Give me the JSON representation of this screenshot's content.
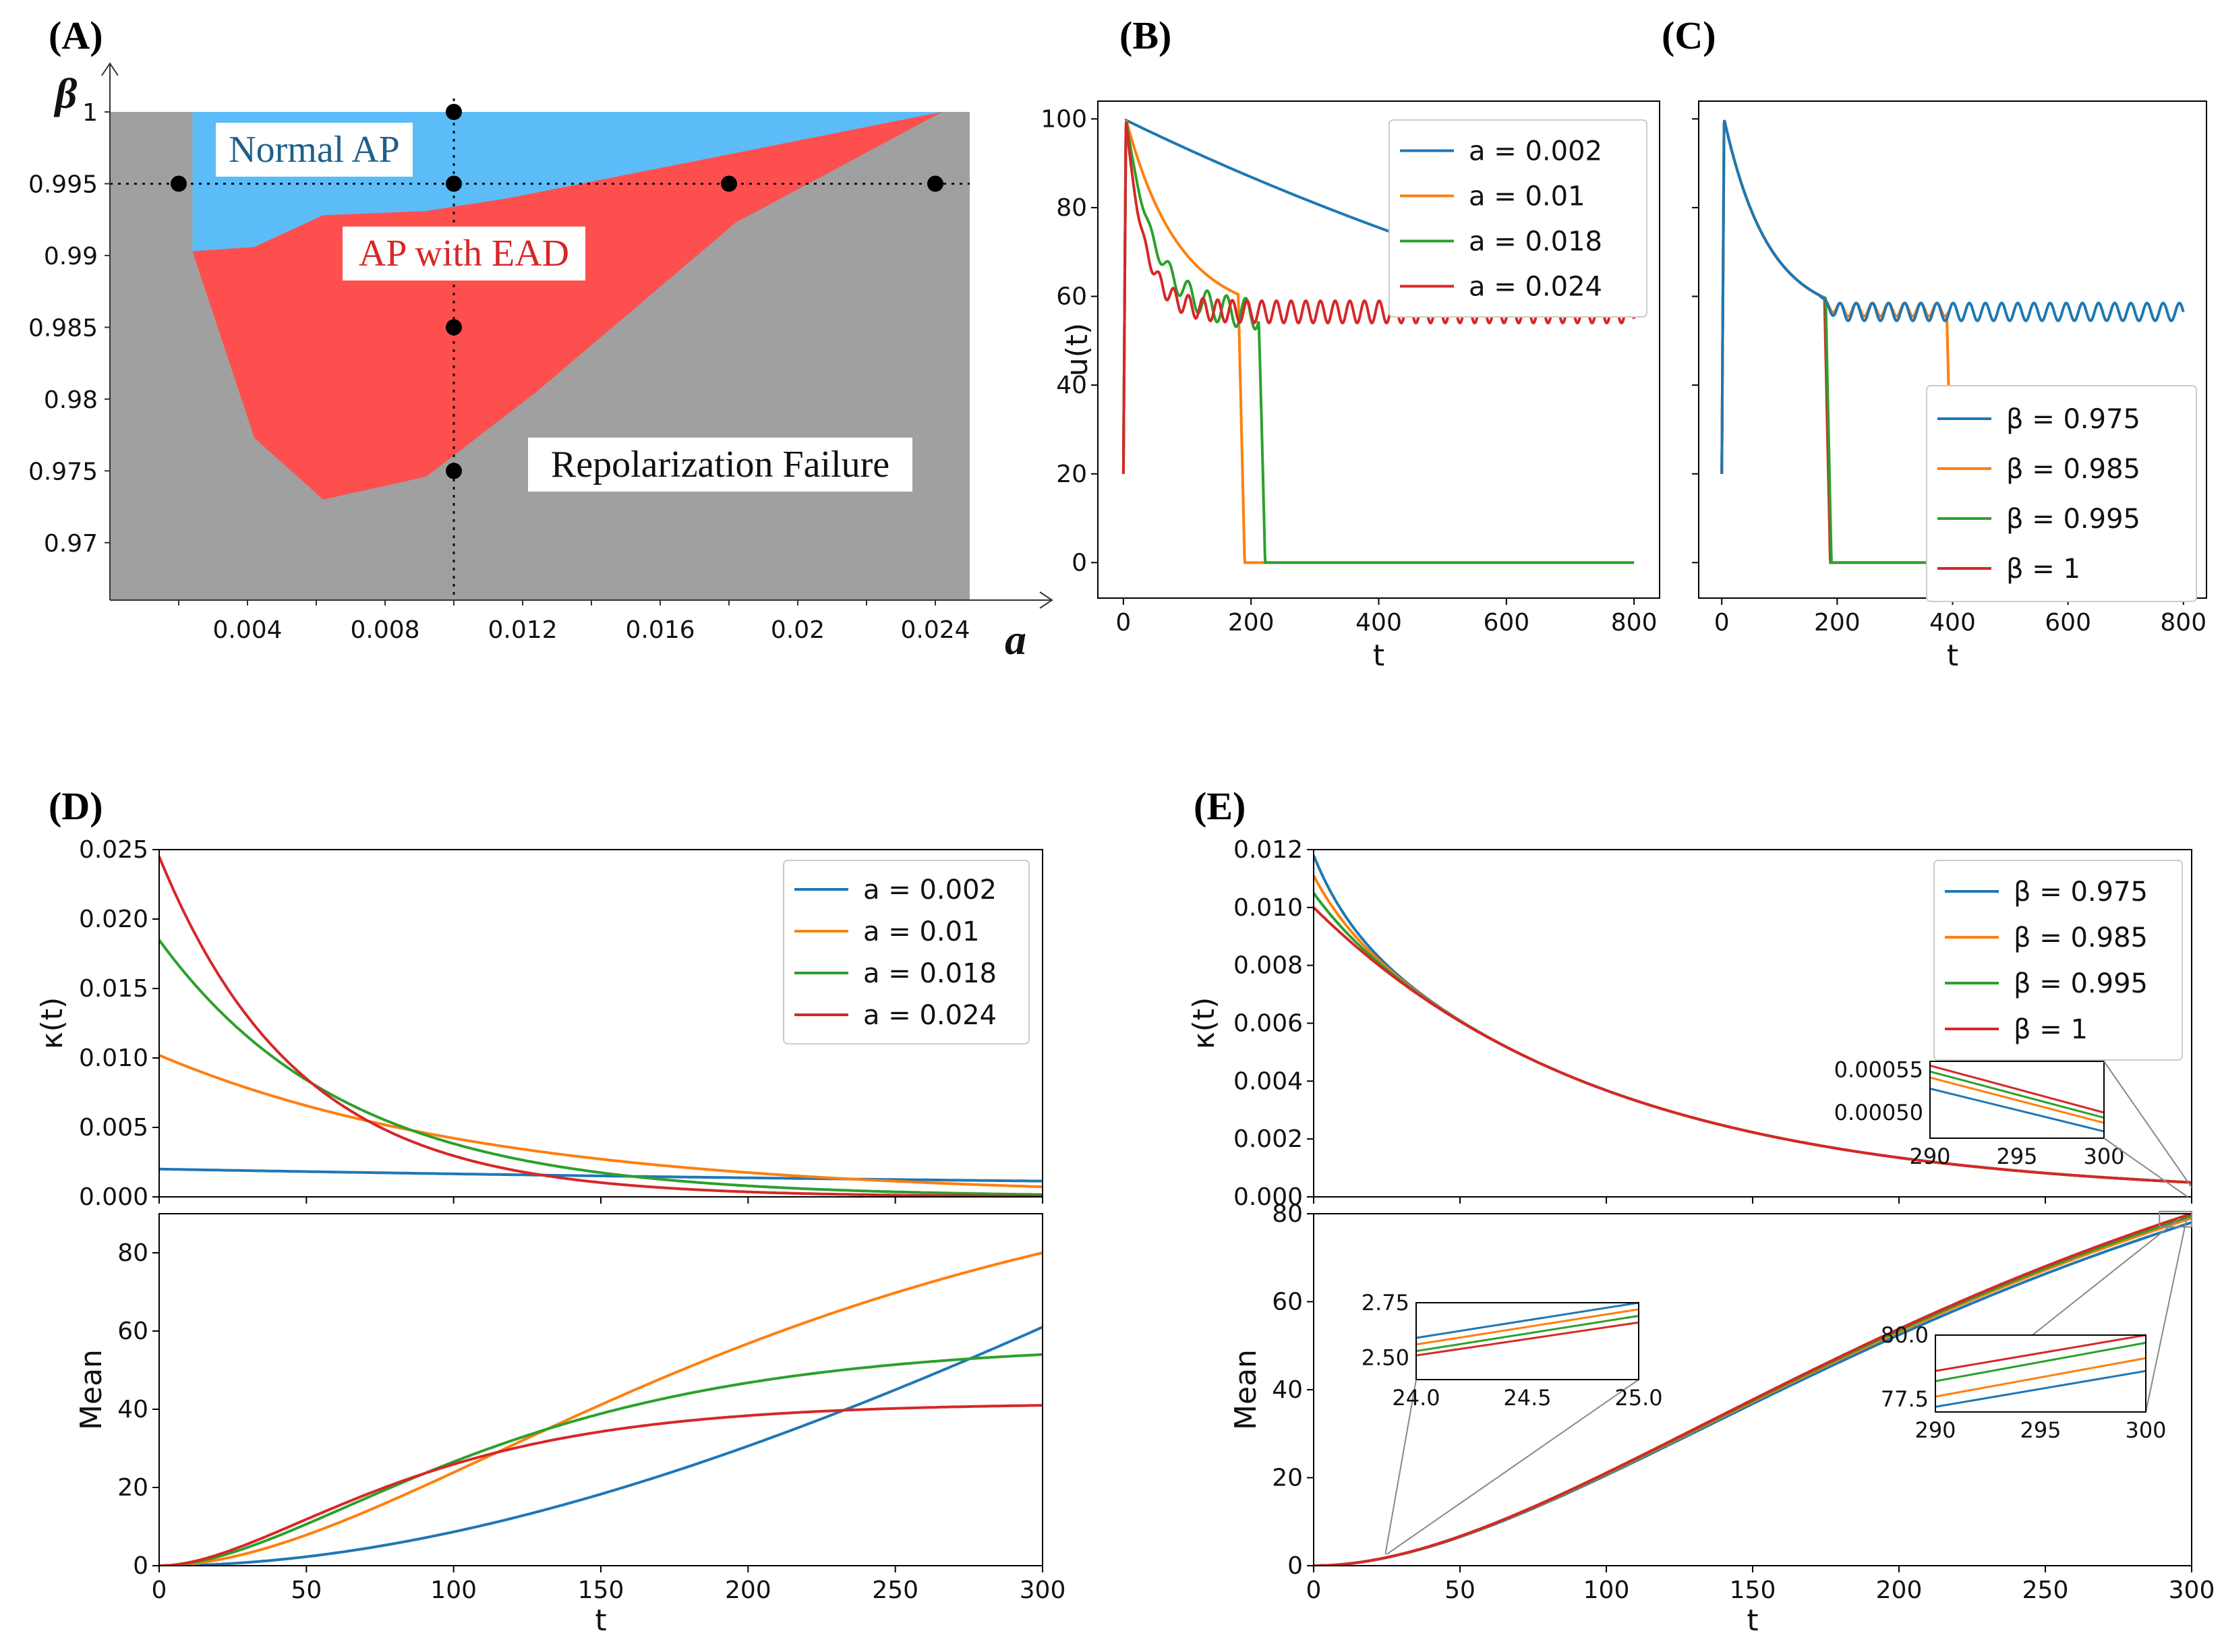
{
  "panel_labels": [
    "(A)",
    "(B)",
    "(C)",
    "(D)",
    "(E)"
  ],
  "colors": {
    "blue": "#1f77b4",
    "orange": "#ff7f0e",
    "green": "#2ca02c",
    "red": "#d62728",
    "normal": "#5bbcf8",
    "ead": "#fe4f4f",
    "fail": "#a0a0a0"
  },
  "chart_data": [
    {
      "panel": "(A)",
      "type": "area",
      "xlabel": "a",
      "ylabel": "β",
      "xlim": [
        0,
        0.025
      ],
      "ylim": [
        0.966,
        1.0
      ],
      "x_ticks": [
        "0.004",
        "0.008",
        "0.012",
        "0.016",
        "0.02",
        "0.024"
      ],
      "x_tick_values": [
        0.004,
        0.008,
        0.012,
        0.016,
        0.02,
        0.024
      ],
      "y_ticks": [
        "0.97",
        "0.975",
        "0.98",
        "0.985",
        "0.99",
        "0.995",
        "1"
      ],
      "y_tick_values": [
        0.97,
        0.975,
        0.98,
        0.985,
        0.99,
        0.995,
        1.0
      ],
      "regions": [
        {
          "label": "Normal AP",
          "upper": [
            [
              0.0024,
              1.0
            ],
            [
              0.0242,
              1.0
            ]
          ],
          "lower": [
            [
              0.0024,
              0.9903
            ],
            [
              0.0042,
              0.9906
            ],
            [
              0.0062,
              0.9928
            ],
            [
              0.0092,
              0.9931
            ],
            [
              0.0116,
              0.994
            ],
            [
              0.0242,
              1.0
            ]
          ]
        },
        {
          "label": "AP with EAD",
          "upper": [
            [
              0.0024,
              0.9903
            ],
            [
              0.0042,
              0.9906
            ],
            [
              0.0062,
              0.9928
            ],
            [
              0.0092,
              0.9931
            ],
            [
              0.0116,
              0.994
            ],
            [
              0.0242,
              1.0
            ]
          ],
          "lower": [
            [
              0.0024,
              0.9903
            ],
            [
              0.0042,
              0.9773
            ],
            [
              0.0062,
              0.973
            ],
            [
              0.0092,
              0.9746
            ],
            [
              0.0124,
              0.9805
            ],
            [
              0.0182,
              0.9923
            ],
            [
              0.0242,
              1.0
            ]
          ]
        }
      ],
      "background_label": "Repolarization Failure",
      "points": [
        [
          0.002,
          0.995
        ],
        [
          0.01,
          1.0
        ],
        [
          0.01,
          0.995
        ],
        [
          0.01,
          0.985
        ],
        [
          0.01,
          0.975
        ],
        [
          0.018,
          0.995
        ],
        [
          0.024,
          0.995
        ]
      ],
      "reference_lines": {
        "a": 0.01,
        "beta": 0.995
      }
    },
    {
      "panel": "(B)",
      "type": "line",
      "xlabel": "t",
      "ylabel": "u(t)",
      "xlim": [
        -40,
        840
      ],
      "ylim": [
        -8,
        104
      ],
      "x_ticks": [
        "0",
        "200",
        "400",
        "600",
        "800"
      ],
      "x_tick_values": [
        0,
        200,
        400,
        600,
        800
      ],
      "y_ticks": [
        "0",
        "20",
        "40",
        "60",
        "80",
        "100"
      ],
      "y_tick_values": [
        0,
        20,
        40,
        60,
        80,
        100
      ],
      "legend_loc": "top-right",
      "series": [
        {
          "name": "a = 0.002",
          "color": "blue",
          "model": {
            "rate": 0.0007,
            "plateau": 40,
            "u0": 100,
            "final": 57
          }
        },
        {
          "name": "a = 0.01",
          "color": "orange",
          "model": {
            "rate": 0.012,
            "plateau": 55,
            "t_fail": 190
          }
        },
        {
          "name": "a = 0.018",
          "color": "green",
          "model": {
            "rate": 0.022,
            "plateau": 55.5,
            "osc": 3.5,
            "period": 30,
            "t_fail": 222
          }
        },
        {
          "name": "a = 0.024",
          "color": "red",
          "model": {
            "rate": 0.035,
            "plateau": 56.5,
            "osc": 2.5,
            "period": 23
          }
        }
      ]
    },
    {
      "panel": "(C)",
      "type": "line",
      "xlabel": "t",
      "ylabel": "",
      "xlim": [
        -40,
        840
      ],
      "ylim": [
        -8,
        104
      ],
      "x_ticks": [
        "0",
        "200",
        "400",
        "600",
        "800"
      ],
      "x_tick_values": [
        0,
        200,
        400,
        600,
        800
      ],
      "legend_loc": "bottom-right",
      "series": [
        {
          "name": "β = 0.975",
          "color": "blue",
          "model": {
            "plateau": 56.5,
            "osc": 2.0,
            "period": 28
          }
        },
        {
          "name": "β = 0.985",
          "color": "orange",
          "model": {
            "plateau": 57,
            "osc": 1.5,
            "period": 28,
            "t_fail": 400
          }
        },
        {
          "name": "β = 0.995",
          "color": "green",
          "model": {
            "t_fail": 190
          }
        },
        {
          "name": "β = 1",
          "color": "red",
          "model": {
            "t_fail": 188
          }
        }
      ]
    },
    {
      "panel": "(D) top",
      "type": "line",
      "xlabel": "",
      "ylabel": "κ(t)",
      "xlim": [
        0,
        300
      ],
      "ylim": [
        0,
        0.025
      ],
      "y_ticks": [
        "0.000",
        "0.005",
        "0.010",
        "0.015",
        "0.020",
        "0.025"
      ],
      "y_tick_values": [
        0,
        0.005,
        0.01,
        0.015,
        0.02,
        0.025
      ],
      "legend_loc": "top-right",
      "series": [
        {
          "name": "a = 0.002",
          "color": "blue",
          "model": {
            "k0": 0.002,
            "rate": 0.0021
          }
        },
        {
          "name": "a = 0.01",
          "color": "orange",
          "model": {
            "k0": 0.0102,
            "rate": 0.0098
          }
        },
        {
          "name": "a = 0.018",
          "color": "green",
          "model": {
            "k0": 0.0185,
            "rate": 0.0175
          }
        },
        {
          "name": "a = 0.024",
          "color": "red",
          "model": {
            "k0": 0.0245,
            "rate": 0.0235
          }
        }
      ]
    },
    {
      "panel": "(D) bottom",
      "type": "line",
      "xlabel": "t",
      "ylabel": "Mean",
      "xlim": [
        0,
        300
      ],
      "ylim": [
        0,
        90
      ],
      "x_ticks": [
        "0",
        "50",
        "100",
        "150",
        "200",
        "250",
        "300"
      ],
      "x_tick_values": [
        0,
        50,
        100,
        150,
        200,
        250,
        300
      ],
      "y_ticks": [
        "0",
        "20",
        "40",
        "60",
        "80"
      ],
      "y_tick_values": [
        0,
        20,
        40,
        60,
        80
      ],
      "series": [
        {
          "name": "a = 0.002",
          "color": "blue",
          "end_value": 61
        },
        {
          "name": "a = 0.01",
          "color": "orange",
          "end_value": 80
        },
        {
          "name": "a = 0.018",
          "color": "green",
          "end_value": 54
        },
        {
          "name": "a = 0.024",
          "color": "red",
          "end_value": 41
        }
      ]
    },
    {
      "panel": "(E) top",
      "type": "line",
      "xlabel": "",
      "ylabel": "κ(t)",
      "xlim": [
        0,
        300
      ],
      "ylim": [
        0,
        0.012
      ],
      "y_ticks": [
        "0.000",
        "0.002",
        "0.004",
        "0.006",
        "0.008",
        "0.010",
        "0.012"
      ],
      "y_tick_values": [
        0,
        0.002,
        0.004,
        0.006,
        0.008,
        0.01,
        0.012
      ],
      "legend_loc": "top-right",
      "series": [
        {
          "name": "β = 0.975",
          "color": "blue",
          "k0": 0.0118
        },
        {
          "name": "β = 0.985",
          "color": "orange",
          "k0": 0.0111
        },
        {
          "name": "β = 0.995",
          "color": "green",
          "k0": 0.0105
        },
        {
          "name": "β = 1",
          "color": "red",
          "k0": 0.01
        }
      ],
      "inset": {
        "xlim": [
          290,
          300
        ],
        "ylim": [
          0.00047,
          0.00056
        ],
        "x_ticks": [
          "290",
          "295",
          "300"
        ],
        "y_ticks": [
          "0.00050",
          "0.00055"
        ],
        "y_tick_values": [
          0.0005,
          0.00055
        ],
        "values_at_290": [
          0.000528,
          0.000541,
          0.000548,
          0.000555
        ],
        "values_at_300": [
          0.000478,
          0.000488,
          0.000494,
          0.0005
        ]
      }
    },
    {
      "panel": "(E) bottom",
      "type": "line",
      "xlabel": "t",
      "ylabel": "Mean",
      "xlim": [
        0,
        300
      ],
      "ylim": [
        0,
        80
      ],
      "x_ticks": [
        "0",
        "50",
        "100",
        "150",
        "200",
        "250",
        "300"
      ],
      "x_tick_values": [
        0,
        50,
        100,
        150,
        200,
        250,
        300
      ],
      "y_ticks": [
        "0",
        "20",
        "40",
        "60",
        "80"
      ],
      "y_tick_values": [
        0,
        20,
        40,
        60,
        80
      ],
      "series": [
        {
          "name": "β = 0.975",
          "color": "blue",
          "end_value": 78
        },
        {
          "name": "β = 0.985",
          "color": "orange",
          "end_value": 79
        },
        {
          "name": "β = 0.995",
          "color": "green",
          "end_value": 79.5
        },
        {
          "name": "β = 1",
          "color": "red",
          "end_value": 80
        }
      ],
      "insets": [
        {
          "xlim": [
            24.0,
            25.0
          ],
          "ylim": [
            2.4,
            2.75
          ],
          "x_ticks": [
            "24.0",
            "24.5",
            "25.0"
          ],
          "y_ticks": [
            "2.50",
            "2.75"
          ],
          "y_tick_values": [
            2.5,
            2.75
          ],
          "values_at_start": [
            2.59,
            2.56,
            2.53,
            2.51
          ],
          "values_at_end": [
            2.75,
            2.72,
            2.69,
            2.66
          ]
        },
        {
          "xlim": [
            290,
            300
          ],
          "ylim": [
            77.0,
            80.0
          ],
          "x_ticks": [
            "290",
            "295",
            "300"
          ],
          "y_ticks": [
            "77.5",
            "80.0"
          ],
          "y_tick_values": [
            77.5,
            80.0
          ],
          "values_at_start": [
            77.2,
            77.6,
            78.2,
            78.6
          ],
          "values_at_end": [
            78.6,
            79.1,
            79.7,
            80.0
          ]
        }
      ]
    }
  ]
}
